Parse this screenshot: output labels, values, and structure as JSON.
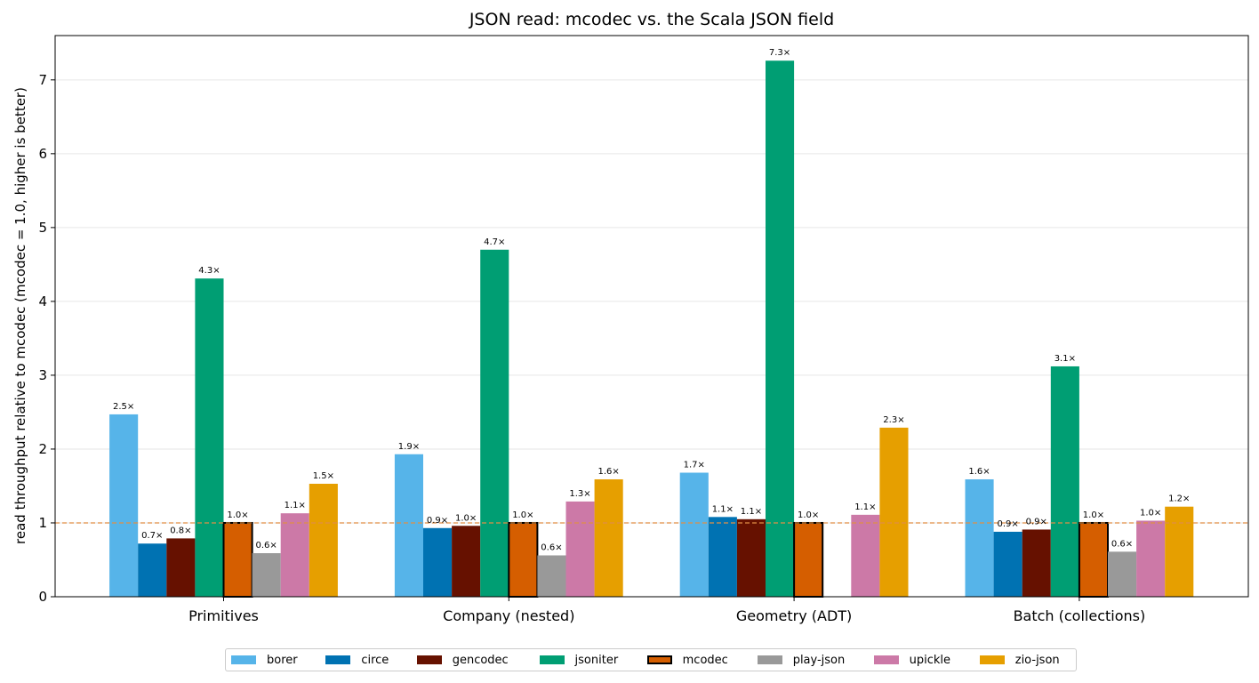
{
  "chart_data": {
    "type": "bar",
    "title": "JSON read: mcodec vs. the Scala JSON field",
    "ylabel": "read throughput relative to mcodec  (mcodec = 1.0, higher is better)",
    "xlabel": "",
    "ylim": [
      0,
      7.6
    ],
    "yticks": [
      "0",
      "1",
      "2",
      "3",
      "4",
      "5",
      "6",
      "7"
    ],
    "grid": "horizontal",
    "legend_position": "bottom-center",
    "reference_line": {
      "value": 1.0,
      "style": "dashed",
      "color": "#e08e45"
    },
    "categories": [
      "Primitives",
      "Company (nested)",
      "Geometry (ADT)",
      "Batch (collections)"
    ],
    "series": [
      {
        "name": "borer",
        "color": "#56b4e9",
        "values": [
          2.47,
          1.93,
          1.68,
          1.59
        ],
        "labels": [
          "2.5×",
          "1.9×",
          "1.7×",
          "1.6×"
        ]
      },
      {
        "name": "circe",
        "color": "#0072b2",
        "values": [
          0.72,
          0.93,
          1.08,
          0.88
        ],
        "labels": [
          "0.7×",
          "0.9×",
          "1.1×",
          "0.9×"
        ]
      },
      {
        "name": "gencodec",
        "color": "#661100",
        "values": [
          0.79,
          0.96,
          1.05,
          0.91
        ],
        "labels": [
          "0.8×",
          "1.0×",
          "1.1×",
          "0.9×"
        ]
      },
      {
        "name": "jsoniter",
        "color": "#009e73",
        "values": [
          4.31,
          4.7,
          7.26,
          3.12
        ],
        "labels": [
          "4.3×",
          "4.7×",
          "7.3×",
          "3.1×"
        ]
      },
      {
        "name": "mcodec",
        "color": "#d55e00",
        "outline": "#000000",
        "values": [
          1.0,
          1.0,
          1.0,
          1.0
        ],
        "labels": [
          "1.0×",
          "1.0×",
          "1.0×",
          "1.0×"
        ]
      },
      {
        "name": "play-json",
        "color": "#999999",
        "values": [
          0.59,
          0.56,
          null,
          0.61
        ],
        "labels": [
          "0.6×",
          "0.6×",
          "",
          "0.6×"
        ]
      },
      {
        "name": "upickle",
        "color": "#cc79a7",
        "values": [
          1.13,
          1.29,
          1.11,
          1.03
        ],
        "labels": [
          "1.1×",
          "1.3×",
          "1.1×",
          "1.0×"
        ]
      },
      {
        "name": "zio-json",
        "color": "#e69f00",
        "values": [
          1.53,
          1.59,
          2.29,
          1.22
        ],
        "labels": [
          "1.5×",
          "1.6×",
          "2.3×",
          "1.2×"
        ]
      }
    ]
  }
}
